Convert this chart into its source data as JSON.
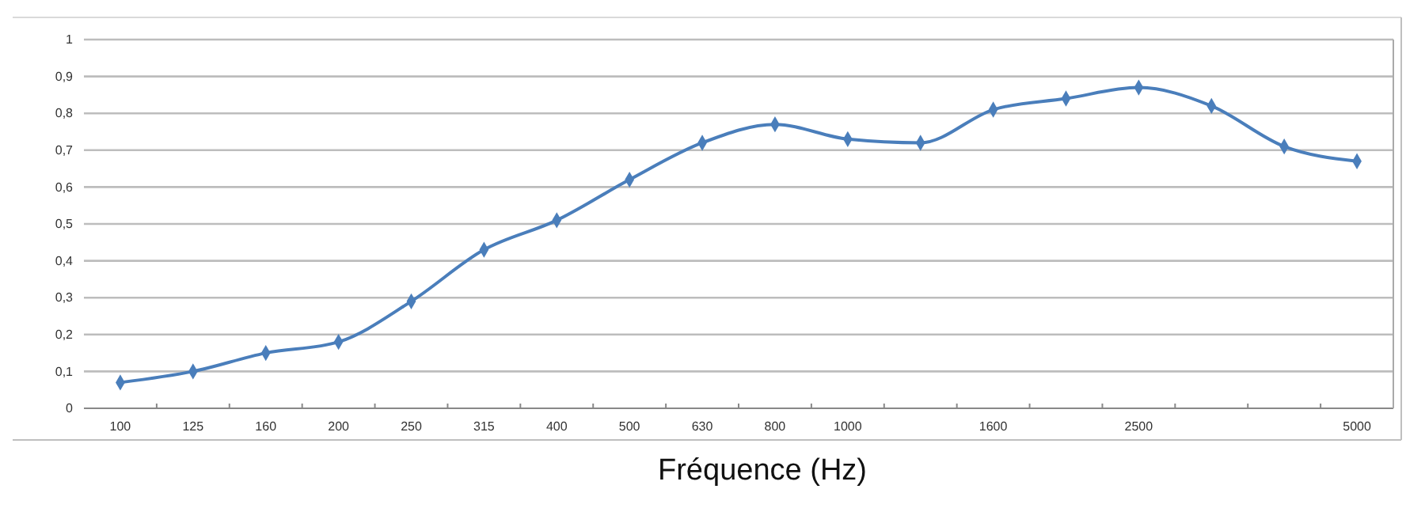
{
  "chart_data": {
    "type": "line",
    "xlabel": "Fréquence (Hz)",
    "categories": [
      "100",
      "125",
      "160",
      "200",
      "250",
      "315",
      "400",
      "500",
      "630",
      "800",
      "1000",
      null,
      "1600",
      null,
      "2500",
      null,
      null,
      "5000"
    ],
    "series": [
      {
        "color": "#4a7ebb",
        "values": [
          0.07,
          0.1,
          0.15,
          0.18,
          0.29,
          0.43,
          0.51,
          0.62,
          0.72,
          0.77,
          0.73,
          0.72,
          0.81,
          0.84,
          0.87,
          0.82,
          0.71,
          0.67
        ]
      }
    ],
    "ylim": [
      0,
      1
    ],
    "yticks": [
      {
        "value": 0,
        "label": "0"
      },
      {
        "value": 0.1,
        "label": "0,1"
      },
      {
        "value": 0.2,
        "label": "0,2"
      },
      {
        "value": 0.3,
        "label": "0,3"
      },
      {
        "value": 0.4,
        "label": "0,4"
      },
      {
        "value": 0.5,
        "label": "0,5"
      },
      {
        "value": 0.6,
        "label": "0,6"
      },
      {
        "value": 0.7,
        "label": "0,7"
      },
      {
        "value": 0.8,
        "label": "0,8"
      },
      {
        "value": 0.9,
        "label": "0,9"
      },
      {
        "value": 1,
        "label": "1"
      }
    ],
    "grid": "y",
    "marker": "diamond",
    "line_style": "solid"
  }
}
